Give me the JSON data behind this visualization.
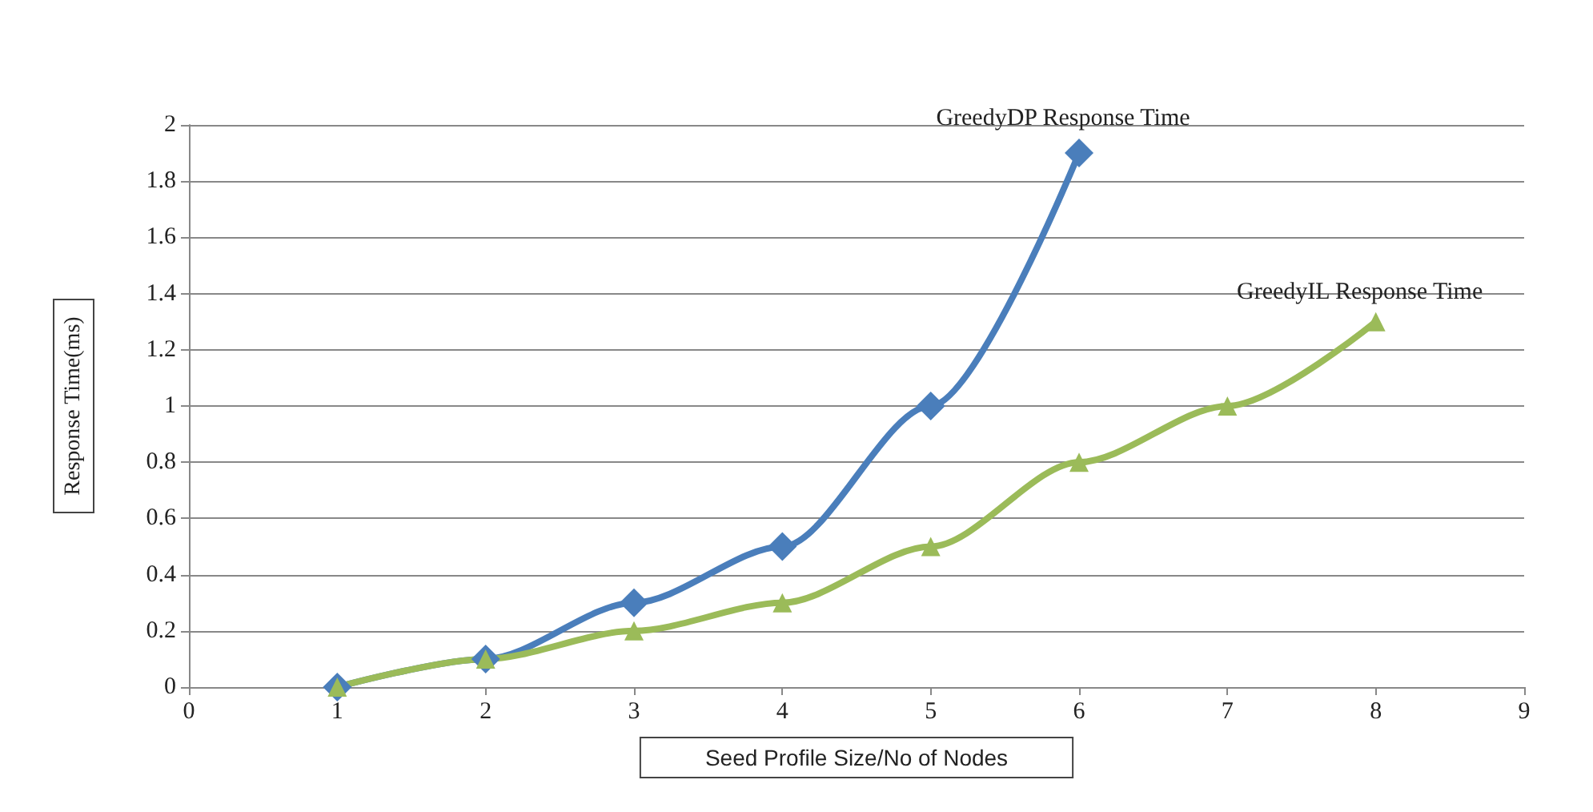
{
  "chart_data": {
    "type": "line",
    "xlabel": "Seed Profile Size/No of Nodes",
    "ylabel": "Response Time(ms)",
    "xlim": [
      0,
      9
    ],
    "xticks": [
      0,
      1,
      2,
      3,
      4,
      5,
      6,
      7,
      8,
      9
    ],
    "ylim": [
      0,
      2
    ],
    "yticks": [
      0,
      0.2,
      0.4,
      0.6,
      0.8,
      1,
      1.2,
      1.4,
      1.6,
      1.8,
      2
    ],
    "grid": "y",
    "series": [
      {
        "name": "GreedyDP Response Time",
        "color": "#4a7ebb",
        "marker": "diamond",
        "x": [
          1,
          2,
          3,
          4,
          5,
          6
        ],
        "values": [
          0,
          0.1,
          0.3,
          0.5,
          1.0,
          1.9
        ]
      },
      {
        "name": "GreedyIL Response Time",
        "color": "#9bbb59",
        "marker": "triangle",
        "x": [
          1,
          2,
          3,
          4,
          5,
          6,
          7,
          8
        ],
        "values": [
          0,
          0.1,
          0.2,
          0.3,
          0.5,
          0.8,
          1.0,
          1.3
        ]
      }
    ]
  }
}
